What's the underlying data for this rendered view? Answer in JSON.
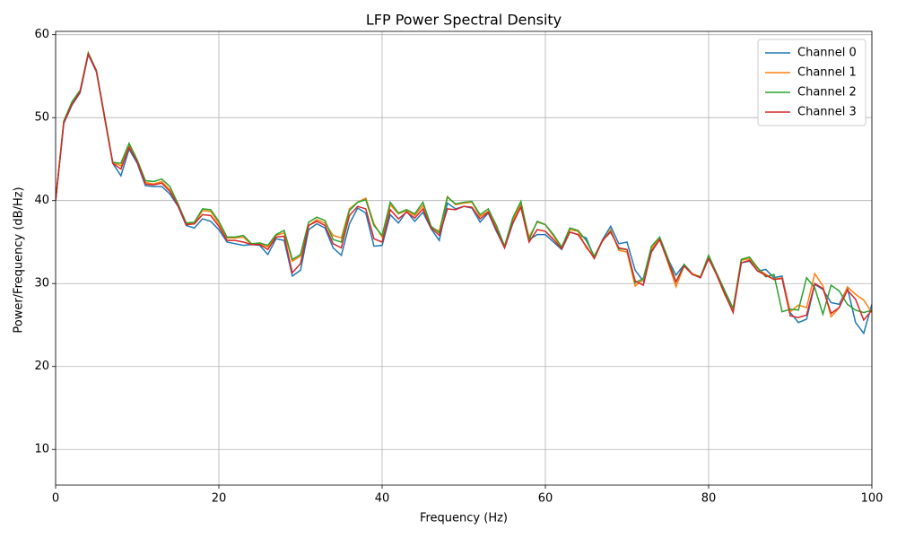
{
  "chart_data": {
    "type": "line",
    "title": "LFP Power Spectral Density",
    "x_label": "Frequency (Hz)",
    "y_label": "Power/Frequency (dB/Hz)",
    "x": [
      0,
      1,
      2,
      3,
      4,
      5,
      6,
      7,
      8,
      9,
      10,
      11,
      12,
      13,
      14,
      15,
      16,
      17,
      18,
      19,
      20,
      21,
      22,
      23,
      24,
      25,
      26,
      27,
      28,
      29,
      30,
      31,
      32,
      33,
      34,
      35,
      36,
      37,
      38,
      39,
      40,
      41,
      42,
      43,
      44,
      45,
      46,
      47,
      48,
      49,
      50,
      51,
      52,
      53,
      54,
      55,
      56,
      57,
      58,
      59,
      60,
      61,
      62,
      63,
      64,
      65,
      66,
      67,
      68,
      69,
      70,
      71,
      72,
      73,
      74,
      75,
      76,
      77,
      78,
      79,
      80,
      81,
      82,
      83,
      84,
      85,
      86,
      87,
      88,
      89,
      90,
      91,
      92,
      93,
      94,
      95,
      96,
      97,
      98,
      99,
      100
    ],
    "series": [
      {
        "name": "Channel 0",
        "color": "#1f77b4",
        "values": [
          40,
          49.3,
          51.5,
          53,
          57.6,
          55.5,
          50,
          44.5,
          43,
          46.2,
          44.5,
          41.8,
          41.7,
          41.7,
          40.8,
          39.3,
          37,
          36.7,
          37.8,
          37.5,
          36.5,
          35,
          34.8,
          34.6,
          34.7,
          34.6,
          33.5,
          35.4,
          35.2,
          30.9,
          31.6,
          36.5,
          37.2,
          36.7,
          34.3,
          33.4,
          37.2,
          39.1,
          38.5,
          34.5,
          34.6,
          38.3,
          37.3,
          38.7,
          37.5,
          38.6,
          36.6,
          35.2,
          39.7,
          39,
          39.3,
          39.1,
          37.4,
          38.5,
          36.3,
          34.3,
          37.2,
          39.3,
          35.3,
          35.9,
          35.9,
          35,
          34.1,
          36.2,
          35.9,
          35.5,
          33.1,
          35.3,
          36.9,
          34.8,
          35,
          31.6,
          30.3,
          33.8,
          35.3,
          33,
          31,
          32.3,
          31.2,
          30.7,
          33.2,
          31.2,
          28.9,
          27,
          32.5,
          32.7,
          31.5,
          31.7,
          30.7,
          30.9,
          26.5,
          25.3,
          25.7,
          29.9,
          29.3,
          27.7,
          27.5,
          29.5,
          25.3,
          24,
          27.5
        ]
      },
      {
        "name": "Channel 1",
        "color": "#ff7f0e",
        "values": [
          40,
          49.5,
          51.8,
          53.2,
          57.8,
          55.6,
          50.1,
          44.6,
          44.2,
          46.6,
          44.8,
          42.2,
          42,
          42.3,
          41.3,
          39.5,
          37.2,
          37.2,
          38.8,
          38.7,
          37.2,
          35.5,
          35.5,
          35.6,
          34.7,
          34.8,
          34.4,
          35.8,
          36.1,
          32.7,
          33.3,
          37,
          37.7,
          37.3,
          35.8,
          35.5,
          39,
          39.8,
          40.3,
          37.2,
          35.6,
          39.5,
          38.4,
          38.8,
          38.2,
          39.4,
          36.8,
          36.3,
          40.5,
          39.5,
          39.7,
          39.8,
          38.1,
          38.7,
          36.7,
          34.4,
          37.6,
          39.6,
          35.6,
          37.4,
          37.1,
          35.7,
          34.3,
          36.5,
          36.3,
          34.3,
          33.3,
          35.1,
          36.5,
          34,
          33.8,
          29.7,
          30.5,
          34.2,
          35.5,
          32.6,
          29.6,
          32.2,
          31.2,
          30.8,
          33.3,
          31,
          28.6,
          26.7,
          32.8,
          33,
          31.8,
          31.1,
          30.5,
          30.7,
          26.6,
          27.4,
          27.1,
          31.2,
          29.7,
          26,
          27.1,
          29.6,
          28.7,
          28,
          26.5
        ]
      },
      {
        "name": "Channel 2",
        "color": "#2ca02c",
        "values": [
          40,
          49.6,
          51.9,
          53.3,
          57.8,
          55.7,
          50.2,
          44.6,
          44.5,
          46.9,
          44.9,
          42.4,
          42.3,
          42.6,
          41.7,
          39.6,
          37.3,
          37.4,
          39,
          38.9,
          37.5,
          35.6,
          35.6,
          35.8,
          34.8,
          34.9,
          34.6,
          35.9,
          36.4,
          32.9,
          33.5,
          37.4,
          38,
          37.6,
          35.3,
          35,
          38.8,
          39.8,
          40.1,
          37,
          35.8,
          39.8,
          38.5,
          38.9,
          38.4,
          39.8,
          36.9,
          36.1,
          40.4,
          39.6,
          39.8,
          39.9,
          38.3,
          39,
          37,
          34.5,
          37.9,
          39.9,
          35.3,
          37.5,
          37.1,
          35.9,
          34.4,
          36.7,
          36.4,
          35.2,
          33.3,
          35.2,
          36.3,
          34.2,
          34.1,
          30.1,
          30.6,
          34.5,
          35.6,
          33.1,
          30.2,
          32.3,
          31.1,
          30.8,
          33.4,
          31.2,
          29.1,
          27,
          32.9,
          33.2,
          31.9,
          30.8,
          31.1,
          26.6,
          26.9,
          26.8,
          30.7,
          29.5,
          26.3,
          29.8,
          29.1,
          27.5,
          26.8,
          26.5,
          26.8
        ]
      },
      {
        "name": "Channel 3",
        "color": "#d62728",
        "values": [
          40,
          49.4,
          51.6,
          53.1,
          57.7,
          55.6,
          50,
          44.5,
          43.8,
          46.4,
          44.7,
          42,
          41.9,
          42.1,
          41.1,
          39.4,
          37.1,
          37.2,
          38.3,
          38.2,
          36.9,
          35.2,
          35.2,
          35,
          34.7,
          34.7,
          34.1,
          35.6,
          35.7,
          31.3,
          32.4,
          37,
          37.5,
          37,
          34.8,
          34.3,
          38.2,
          39.3,
          39,
          35.4,
          35,
          38.9,
          37.8,
          38.6,
          37.9,
          39,
          36.7,
          35.8,
          39,
          38.9,
          39.3,
          39.2,
          37.8,
          38.6,
          36.5,
          34.3,
          37.3,
          39.2,
          35,
          36.5,
          36.3,
          35.3,
          34.2,
          36.2,
          35.9,
          34.5,
          33,
          35.2,
          36.2,
          34.3,
          34.1,
          30.3,
          29.8,
          33.9,
          35.3,
          32.7,
          30.2,
          32.1,
          31.1,
          30.7,
          33,
          31,
          28.7,
          26.5,
          32.5,
          32.8,
          31.5,
          31,
          30.5,
          30.6,
          26.1,
          25.9,
          26.2,
          30,
          29.4,
          26.4,
          27.1,
          29.2,
          28.1,
          25.6,
          26.8
        ]
      }
    ],
    "xlim": [
      0,
      100
    ],
    "ylim": [
      5.7,
      60.4
    ],
    "xticks": [
      0,
      20,
      40,
      60,
      80,
      100
    ],
    "yticks": [
      10,
      20,
      30,
      40,
      50,
      60
    ],
    "grid": true,
    "legend": "upper right"
  }
}
